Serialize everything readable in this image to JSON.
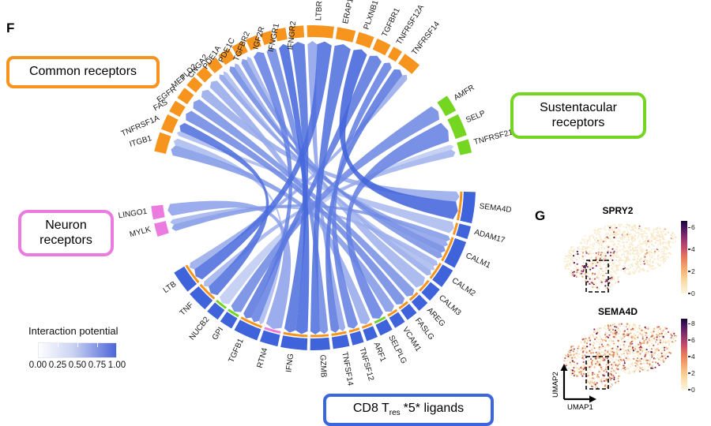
{
  "panel_f": {
    "label": "F",
    "boxes": {
      "common": {
        "label": "Common receptors",
        "color": "#F7941D"
      },
      "sustentacular": {
        "line1": "Sustentacular",
        "line2": "receptors",
        "color": "#74D621"
      },
      "neuron": {
        "line1": "Neuron",
        "line2": "receptors",
        "color": "#EC7BDF"
      },
      "ligands": {
        "prefix": "CD8 T",
        "sub": "res",
        "suffix": "*5* ligands",
        "color": "#3B66DE"
      }
    },
    "legend": {
      "title": "Interaction potential",
      "ticks": [
        "0.00",
        "0.25",
        "0.50",
        "0.75",
        "1.00"
      ],
      "color_low": "#FFFFFF",
      "color_high": "#4B63D9"
    },
    "chart_data": {
      "type": "chord",
      "groups": [
        {
          "id": "common",
          "name": "Common receptors",
          "color": "#F7941D",
          "arc": [
            167,
            49
          ],
          "gap": 1.2,
          "segments": [
            {
              "id": "ITGB1",
              "w": 1.6
            },
            {
              "id": "TNFRSF1A",
              "w": 1.3
            },
            {
              "id": "FAS",
              "w": 1.0
            },
            {
              "id": "EGFR",
              "w": 1.0
            },
            {
              "id": "MET",
              "w": 0.9
            },
            {
              "id": "PLD2",
              "w": 0.9
            },
            {
              "id": "CNGA2",
              "w": 0.9
            },
            {
              "id": "PDE1A",
              "w": 1.0
            },
            {
              "id": "PDE1C",
              "w": 1.0
            },
            {
              "id": "TGFBR2",
              "w": 1.0
            },
            {
              "id": "IGF2R",
              "w": 0.9
            },
            {
              "id": "IFNGR1",
              "w": 0.9
            },
            {
              "id": "IFNGR2",
              "w": 1.2
            },
            {
              "id": "LTBR",
              "w": 2.2
            },
            {
              "id": "ERAP1",
              "w": 1.5
            },
            {
              "id": "PLXNB1",
              "w": 1.3
            },
            {
              "id": "TGFBR1",
              "w": 1.2
            },
            {
              "id": "TNFRSF12A",
              "w": 0.8
            },
            {
              "id": "TNFRSF14",
              "w": 1.5
            }
          ]
        },
        {
          "id": "sustentacular",
          "name": "Sustentacular receptors",
          "color": "#74D621",
          "arc": [
            34.5,
            12.5
          ],
          "gap": 1.5,
          "segments": [
            {
              "id": "AMFR",
              "w": 1.0
            },
            {
              "id": "SELP",
              "w": 1.3
            },
            {
              "id": "TNFRSF21",
              "w": 0.8
            }
          ]
        },
        {
          "id": "ligands",
          "name": "CD8 Tres *5* ligands",
          "color": "#3F63DB",
          "arc": [
            358.5,
            211.5
          ],
          "gap": 1.1,
          "segments": [
            {
              "id": "SEMA4D",
              "w": 1.9,
              "tick": "#F7941D"
            },
            {
              "id": "ADAM17",
              "w": 0.8,
              "tick": "#F7941D"
            },
            {
              "id": "CALM1",
              "w": 1.7,
              "tick": "#F7941D"
            },
            {
              "id": "CALM2",
              "w": 1.2,
              "tick": "#F7941D"
            },
            {
              "id": "CALM3",
              "w": 0.9,
              "tick": "#F7941D"
            },
            {
              "id": "AREG",
              "w": 0.7,
              "tick": "#F7941D"
            },
            {
              "id": "FASLG",
              "w": 0.7,
              "tick": "#F7941D"
            },
            {
              "id": "VCAM1",
              "w": 0.7,
              "tick": "#F7941D"
            },
            {
              "id": "SELPLG",
              "w": 0.8,
              "tick": "#74D621"
            },
            {
              "id": "ARF1",
              "w": 0.7,
              "tick": "#F7941D"
            },
            {
              "id": "TNFSF12",
              "w": 0.7,
              "tick": "#F7941D"
            },
            {
              "id": "TNFSF14",
              "w": 1.0,
              "tick": "#F7941D"
            },
            {
              "id": "GZMB",
              "w": 1.2,
              "tick": "#F7941D"
            },
            {
              "id": "IFNG",
              "w": 1.6,
              "tick": "#F7941D"
            },
            {
              "id": "RTN4",
              "w": 1.1,
              "tick": "#EC7BDF"
            },
            {
              "id": "TGFB1",
              "w": 1.5,
              "tick": "#F7941D"
            },
            {
              "id": "GPI",
              "w": 0.8,
              "tick": "#74D621"
            },
            {
              "id": "NUCB2",
              "w": 0.8,
              "tick": "#74D621"
            },
            {
              "id": "TNF",
              "w": 1.3,
              "tick": "#F7941D"
            },
            {
              "id": "LTB",
              "w": 1.4,
              "tick": "#F7941D"
            }
          ]
        },
        {
          "id": "neuron",
          "name": "Neuron receptors",
          "color": "#EC7BDF",
          "arc": [
            197.5,
            186.5
          ],
          "gap": 1.5,
          "segments": [
            {
              "id": "MYLK",
              "w": 1.0
            },
            {
              "id": "LINGO1",
              "w": 1.0
            }
          ]
        }
      ],
      "links": [
        {
          "source": "SEMA4D",
          "target": "PLXNB1",
          "value": 0.97
        },
        {
          "source": "SEMA4D",
          "target": "MET",
          "value": 0.55
        },
        {
          "source": "ADAM17",
          "target": "TNFRSF1A",
          "value": 0.45
        },
        {
          "source": "CALM1",
          "target": "PDE1A",
          "value": 0.75
        },
        {
          "source": "CALM1",
          "target": "PDE1C",
          "value": 0.7
        },
        {
          "source": "CALM1",
          "target": "CNGA2",
          "value": 0.6
        },
        {
          "source": "CALM1",
          "target": "MYLK",
          "value": 0.65
        },
        {
          "source": "CALM2",
          "target": "PDE1A",
          "value": 0.55
        },
        {
          "source": "CALM2",
          "target": "CNGA2",
          "value": 0.45
        },
        {
          "source": "CALM2",
          "target": "MYLK",
          "value": 0.5
        },
        {
          "source": "CALM3",
          "target": "PDE1C",
          "value": 0.5
        },
        {
          "source": "AREG",
          "target": "EGFR",
          "value": 0.7
        },
        {
          "source": "FASLG",
          "target": "FAS",
          "value": 0.75
        },
        {
          "source": "VCAM1",
          "target": "ITGB1",
          "value": 0.65
        },
        {
          "source": "SELPLG",
          "target": "SELP",
          "value": 0.8
        },
        {
          "source": "ARF1",
          "target": "PLD2",
          "value": 0.55
        },
        {
          "source": "TNFSF12",
          "target": "TNFRSF12A",
          "value": 0.8
        },
        {
          "source": "TNFSF14",
          "target": "TNFRSF14",
          "value": 0.85
        },
        {
          "source": "TNFSF14",
          "target": "LTBR",
          "value": 0.6
        },
        {
          "source": "GZMB",
          "target": "IGF2R",
          "value": 0.75
        },
        {
          "source": "GZMB",
          "target": "ERAP1",
          "value": 0.9
        },
        {
          "source": "IFNG",
          "target": "IFNGR1",
          "value": 0.95
        },
        {
          "source": "IFNG",
          "target": "IFNGR2",
          "value": 0.9
        },
        {
          "source": "RTN4",
          "target": "LINGO1",
          "value": 0.6
        },
        {
          "source": "TGFB1",
          "target": "TGFBR1",
          "value": 0.85
        },
        {
          "source": "TGFB1",
          "target": "TGFBR2",
          "value": 0.8
        },
        {
          "source": "TGFB1",
          "target": "ITGB1",
          "value": 0.45
        },
        {
          "source": "GPI",
          "target": "AMFR",
          "value": 0.75
        },
        {
          "source": "NUCB2",
          "target": "TNFRSF21",
          "value": 0.35
        },
        {
          "source": "TNF",
          "target": "TNFRSF1A",
          "value": 0.9
        },
        {
          "source": "TNF",
          "target": "TNFRSF21",
          "value": 0.5
        },
        {
          "source": "LTB",
          "target": "LTBR",
          "value": 0.92
        },
        {
          "source": "LTB",
          "target": "TNFRSF14",
          "value": 0.55
        }
      ]
    }
  },
  "panel_g": {
    "label": "G",
    "axis_x": "UMAP1",
    "axis_y": "UMAP2",
    "chart_data": [
      {
        "type": "scatter",
        "title": "SPRY2",
        "colorbar": {
          "ticks": [
            6,
            4,
            2,
            0
          ],
          "max": 6.6
        },
        "highlight_box": true
      },
      {
        "type": "scatter",
        "title": "SEMA4D",
        "colorbar": {
          "ticks": [
            8,
            6,
            4,
            2,
            0
          ],
          "max": 8.6
        },
        "highlight_box": true
      }
    ]
  }
}
